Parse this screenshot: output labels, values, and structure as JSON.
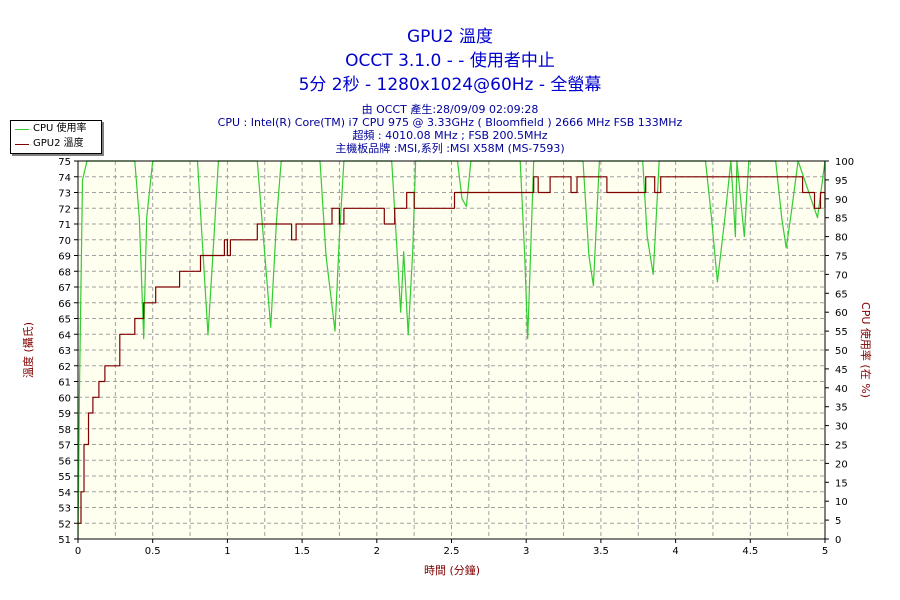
{
  "header": {
    "title": "GPU2 溫度",
    "subtitle": "OCCT 3.1.0 -   - 使用者中止",
    "run_info": "5分 2秒 - 1280x1024@60Hz - 全螢幕",
    "generated": "由 OCCT 產生:28/09/09 02:09:28",
    "cpu": "CPU : Intel(R) Core(TM) i7 CPU 975 @ 3.33GHz ( Bloomfield ) 2666 MHz FSB 133MHz",
    "clock": "超頻 : 4010.08 MHz ; FSB 200.5MHz",
    "motherboard": "主機板品牌 :MSI,系列 :MSI X58M (MS-7593)"
  },
  "chart_data": {
    "type": "line",
    "xlabel": "時間 (分鐘)",
    "ylabel_left": "溫度 (攝氏)",
    "ylabel_right": "CPU 使用率 (在 %)",
    "xlim": [
      0,
      5
    ],
    "ylim_left": [
      51,
      75
    ],
    "ylim_right": [
      0,
      100
    ],
    "x_ticks": [
      "0",
      "0.5",
      "1",
      "1.5",
      "2",
      "2.5",
      "3",
      "3.5",
      "4",
      "4.5",
      "5"
    ],
    "y_left_ticks": [
      "51",
      "52",
      "53",
      "54",
      "55",
      "56",
      "57",
      "58",
      "59",
      "60",
      "61",
      "62",
      "63",
      "64",
      "65",
      "66",
      "67",
      "68",
      "69",
      "70",
      "71",
      "72",
      "73",
      "74",
      "75"
    ],
    "y_right_ticks": [
      "0",
      "5",
      "10",
      "15",
      "20",
      "25",
      "30",
      "35",
      "40",
      "45",
      "50",
      "55",
      "60",
      "65",
      "70",
      "75",
      "80",
      "85",
      "90",
      "95",
      "100"
    ],
    "grid": true,
    "legend_position": "top-left",
    "series": [
      {
        "name": "CPU 使用率",
        "color": "#33cc33",
        "axis": "right",
        "x": [
          0,
          0.01,
          0.03,
          0.06,
          0.09,
          0.1,
          0.38,
          0.41,
          0.44,
          0.46,
          0.5,
          0.8,
          0.83,
          0.87,
          0.91,
          0.94,
          1.2,
          1.24,
          1.29,
          1.33,
          1.36,
          1.62,
          1.66,
          1.72,
          1.75,
          1.78,
          2.1,
          2.13,
          2.16,
          2.18,
          2.21,
          2.24,
          2.26,
          2.54,
          2.57,
          2.6,
          2.63,
          2.96,
          2.99,
          3.01,
          3.05,
          3.38,
          3.42,
          3.45,
          3.49,
          3.78,
          3.81,
          3.85,
          3.89,
          4.2,
          4.24,
          4.28,
          4.33,
          4.37,
          4.4,
          4.41,
          4.46,
          4.49,
          4.67,
          4.71,
          4.74,
          4.77,
          4.82,
          4.95,
          5
        ],
        "y": [
          0,
          40,
          95,
          100,
          100,
          100,
          100,
          85,
          53,
          85,
          100,
          100,
          80,
          54,
          80,
          100,
          100,
          80,
          56,
          85,
          100,
          100,
          75,
          55,
          80,
          100,
          100,
          80,
          60,
          76,
          54,
          76,
          100,
          100,
          90,
          88,
          100,
          100,
          75,
          53,
          100,
          100,
          75,
          67,
          100,
          100,
          80,
          70,
          100,
          100,
          85,
          68,
          85,
          100,
          80,
          100,
          80,
          100,
          100,
          85,
          77,
          85,
          100,
          85,
          100
        ]
      },
      {
        "name": "GPU2 溫度",
        "color": "#800000",
        "axis": "left",
        "step": true,
        "x": [
          0,
          0.02,
          0.04,
          0.05,
          0.06,
          0.07,
          0.09,
          0.1,
          0.12,
          0.14,
          0.18,
          0.28,
          0.38,
          0.44,
          0.52,
          0.68,
          0.73,
          0.82,
          0.95,
          0.98,
          1.0,
          1.02,
          1.08,
          1.2,
          1.4,
          1.43,
          1.46,
          1.56,
          1.7,
          1.75,
          1.78,
          1.9,
          2.05,
          2.12,
          2.2,
          2.25,
          2.38,
          2.52,
          2.6,
          2.78,
          2.9,
          3.05,
          3.08,
          3.12,
          3.16,
          3.3,
          3.34,
          3.42,
          3.54,
          3.62,
          3.7,
          3.8,
          3.86,
          3.9,
          4.0,
          4.35,
          4.8,
          4.85,
          4.89,
          4.93,
          4.97,
          5
        ],
        "y": [
          52,
          54,
          57,
          57,
          57,
          59,
          59,
          60,
          60,
          61,
          62,
          64,
          65,
          66,
          67,
          68,
          68,
          69,
          69,
          70,
          69,
          70,
          70,
          71,
          71,
          70,
          71,
          71,
          72,
          71,
          72,
          72,
          71,
          72,
          73,
          72,
          72,
          73,
          73,
          73,
          73,
          74,
          73,
          73,
          74,
          73,
          74,
          74,
          73,
          73,
          73,
          74,
          73,
          74,
          74,
          74,
          74,
          73,
          73,
          72,
          73,
          72
        ]
      }
    ]
  }
}
